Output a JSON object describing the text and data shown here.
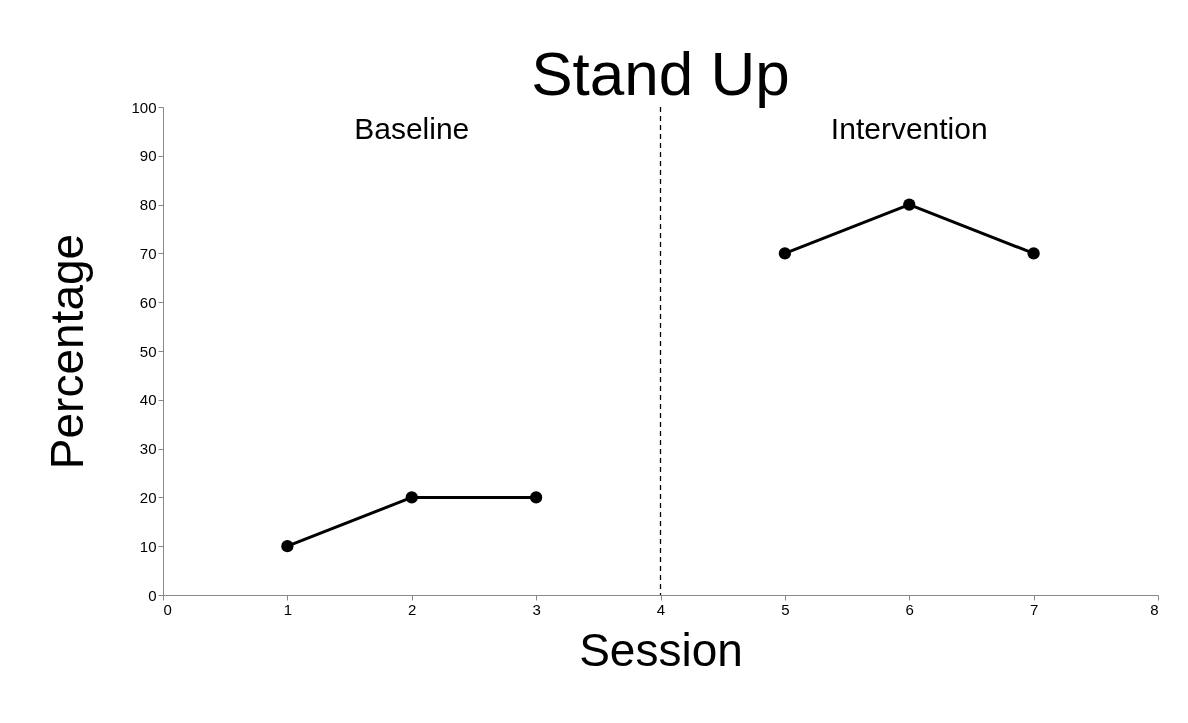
{
  "chart_data": {
    "type": "line",
    "title": "Stand Up",
    "xlabel": "Session",
    "ylabel": "Percentage",
    "series": [
      {
        "color": "#000000",
        "x": [
          1,
          2,
          3
        ],
        "values": [
          10,
          20,
          20
        ]
      },
      {
        "color": "#000000",
        "x": [
          5,
          6,
          7
        ],
        "values": [
          70,
          80,
          70
        ]
      }
    ],
    "xlim": [
      0,
      8
    ],
    "xticks": [
      0,
      1,
      2,
      3,
      4,
      5,
      6,
      7,
      8
    ],
    "ylim": [
      0,
      100
    ],
    "yticks": [
      0,
      10,
      20,
      30,
      40,
      50,
      60,
      70,
      80,
      90,
      100
    ],
    "grid": false,
    "marker": "circle",
    "line_style": "solid",
    "ref_lines": [
      {
        "axis": "x",
        "value": 4,
        "line_style": "dashed",
        "color": "#000000"
      }
    ],
    "annotations": [
      "Baseline",
      "Intervention"
    ]
  }
}
